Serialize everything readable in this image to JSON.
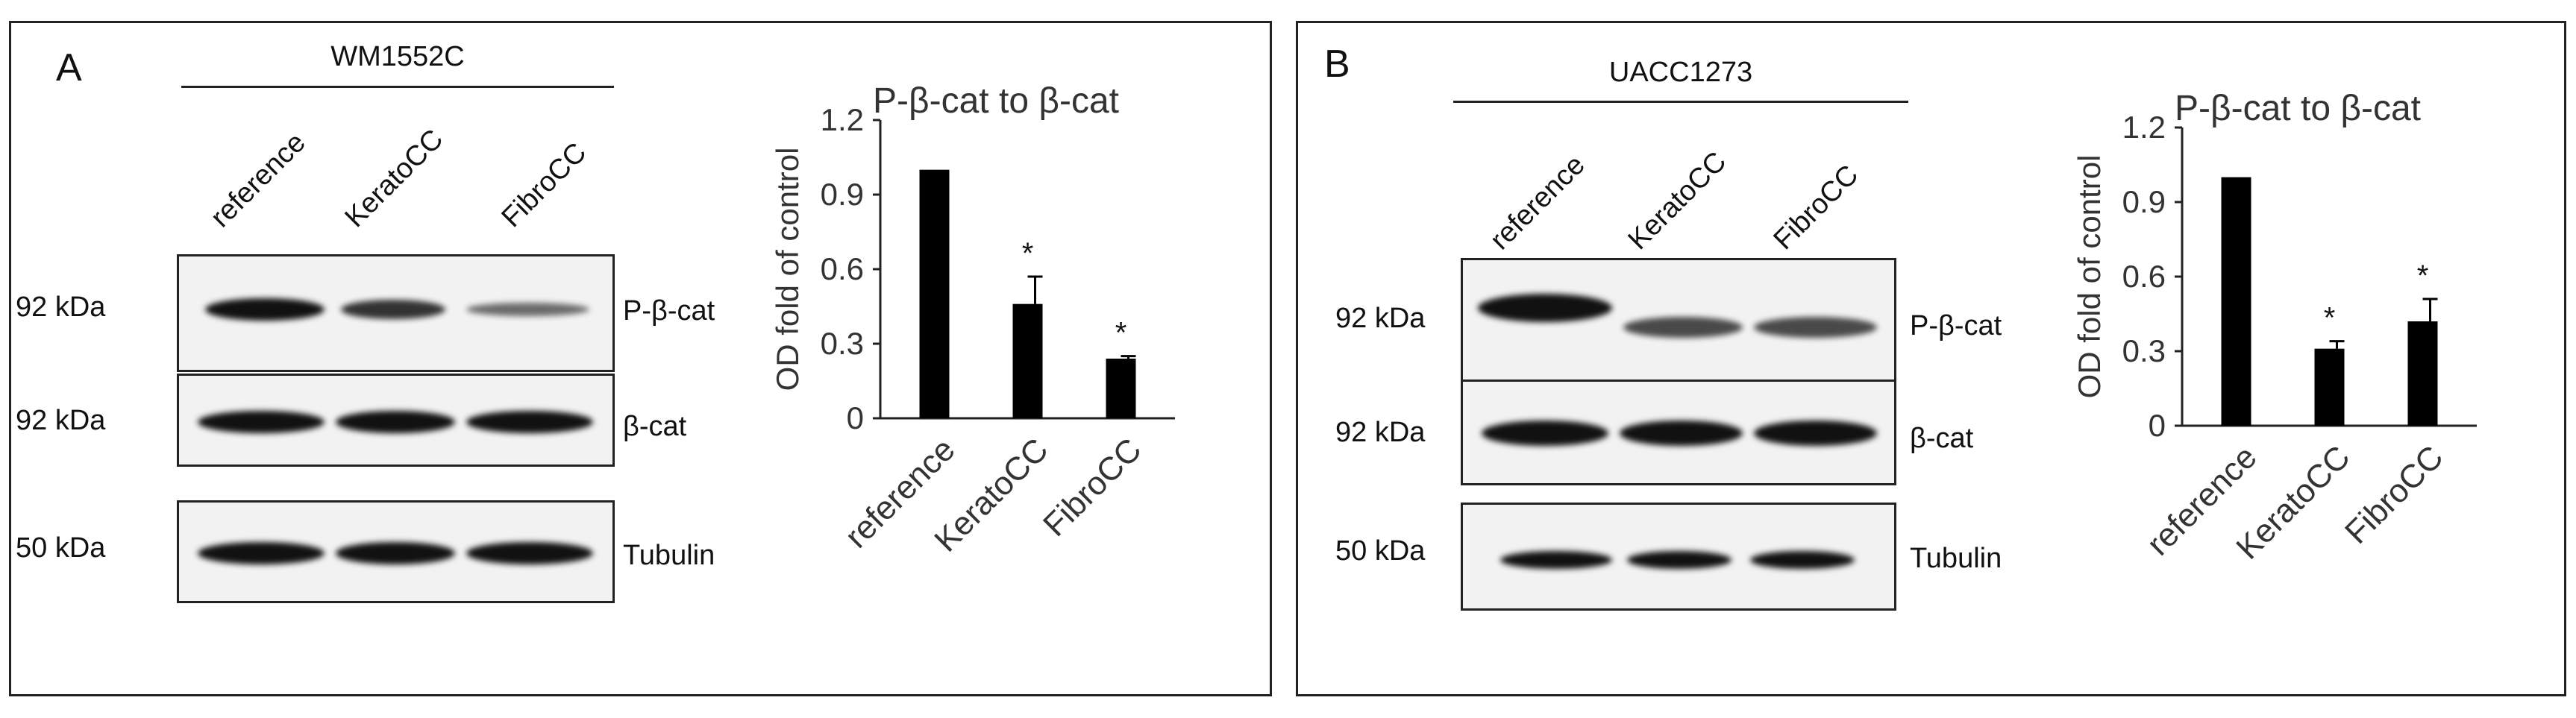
{
  "panels": [
    {
      "letter": "A",
      "cell_line": "WM1552C",
      "lanes": [
        "reference",
        "KeratoCC",
        "FibroCC"
      ],
      "blots": [
        {
          "kda": "92 kDa",
          "label": "P-β-cat",
          "intensity": [
            1.0,
            0.85,
            0.45
          ]
        },
        {
          "kda": "92 kDa",
          "label": "β-cat",
          "intensity": [
            1.0,
            1.0,
            1.0
          ]
        },
        {
          "kda": "50 kDa",
          "label": "Tubulin",
          "intensity": [
            1.0,
            1.0,
            1.0
          ]
        }
      ]
    },
    {
      "letter": "B",
      "cell_line": "UACC1273",
      "lanes": [
        "reference",
        "KeratoCC",
        "FibroCC"
      ],
      "blots": [
        {
          "kda": "92 kDa",
          "label": "P-β-cat",
          "intensity": [
            1.0,
            0.7,
            0.7
          ]
        },
        {
          "kda": "92 kDa",
          "label": "β-cat",
          "intensity": [
            1.0,
            1.0,
            1.0
          ]
        },
        {
          "kda": "50 kDa",
          "label": "Tubulin",
          "intensity": [
            1.0,
            1.0,
            1.0
          ]
        }
      ]
    }
  ],
  "chart_data": [
    {
      "type": "bar",
      "title": "P-β-cat to β-cat",
      "ylabel": "OD fold of control",
      "xlabel": "",
      "categories": [
        "reference",
        "KeratoCC",
        "FibroCC"
      ],
      "values": [
        1.0,
        0.46,
        0.24
      ],
      "errors": [
        0.0,
        0.11,
        0.01
      ],
      "significance": [
        "",
        "*",
        "*"
      ],
      "ylim": [
        0,
        1.2
      ],
      "yticks": [
        "0",
        "0.3",
        "0.6",
        "0.9",
        "1.2"
      ],
      "bar_color": "#000000"
    },
    {
      "type": "bar",
      "title": "P-β-cat to β-cat",
      "ylabel": "OD fold of control",
      "xlabel": "",
      "categories": [
        "reference",
        "KeratoCC",
        "FibroCC"
      ],
      "values": [
        1.0,
        0.31,
        0.42
      ],
      "errors": [
        0.0,
        0.03,
        0.09
      ],
      "significance": [
        "",
        "*",
        "*"
      ],
      "ylim": [
        0,
        1.2
      ],
      "yticks": [
        "0",
        "0.3",
        "0.6",
        "0.9",
        "1.2"
      ],
      "bar_color": "#000000"
    }
  ]
}
